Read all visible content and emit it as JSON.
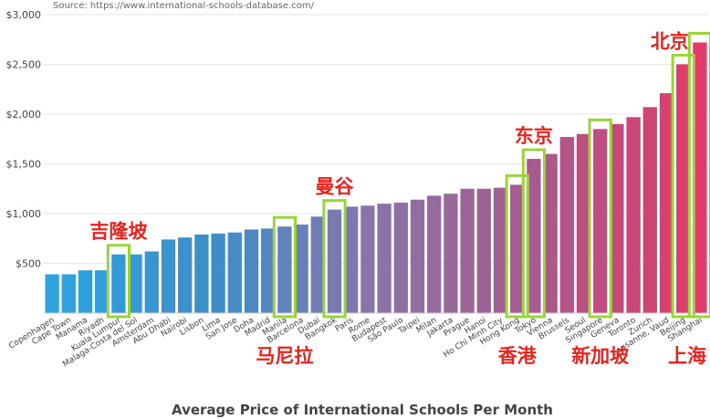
{
  "source": "Source: https://www.international-schools-database.com/",
  "chart_data": {
    "type": "bar",
    "title": "Average Price of International Schools Per Month",
    "xlabel": "",
    "ylabel": "",
    "ylim": [
      0,
      3000
    ],
    "yticks": [
      500,
      1000,
      1500,
      2000,
      2500,
      3000
    ],
    "ytick_labels": [
      "$500",
      "$1,000",
      "$1,500",
      "$2,000",
      "$2,500",
      "$3,000"
    ],
    "grid": true,
    "color_gradient": [
      "#2ea3e0",
      "#3d8ec8",
      "#8b74a8",
      "#a85a8c",
      "#e23a6a"
    ],
    "highlight_color": "#9ad43b",
    "annotation_color": "#e8231d",
    "categories": [
      "Copenhagen",
      "Cape Town",
      "Manama",
      "Riyadh",
      "Kuala Lumpur",
      "Malaga-Costa del Sol",
      "Amsterdam",
      "Abu Dhabi",
      "Nairobi",
      "Lisbon",
      "Lima",
      "San Jose",
      "Doha",
      "Madrid",
      "Manila",
      "Barcelona",
      "Dubai",
      "Bangkok",
      "Paris",
      "Rome",
      "Budapest",
      "São Paulo",
      "Taipei",
      "Milan",
      "Jakarta",
      "Prague",
      "Hanoi",
      "Ho Chi Minh City",
      "Hong Kong",
      "Tokyo",
      "Vienna",
      "Brussels",
      "Seoul",
      "Singapore",
      "Geneva",
      "Toronto",
      "Zurich",
      "Lausanne, Vaud",
      "Beijing",
      "Shanghai"
    ],
    "values": [
      390,
      390,
      430,
      430,
      590,
      590,
      620,
      740,
      760,
      790,
      800,
      810,
      840,
      850,
      870,
      890,
      970,
      1040,
      1070,
      1080,
      1100,
      1110,
      1140,
      1180,
      1200,
      1250,
      1250,
      1260,
      1290,
      1550,
      1600,
      1770,
      1800,
      1850,
      1900,
      1970,
      2070,
      2210,
      2500,
      2720
    ],
    "highlights": [
      {
        "category": "Kuala Lumpur",
        "annotation": "吉隆坡",
        "annotation_position": "above"
      },
      {
        "category": "Manila",
        "annotation": "马尼拉",
        "annotation_position": "below"
      },
      {
        "category": "Bangkok",
        "annotation": "曼谷",
        "annotation_position": "above"
      },
      {
        "category": "Hong Kong",
        "annotation": "香港",
        "annotation_position": "below"
      },
      {
        "category": "Tokyo",
        "annotation": "东京",
        "annotation_position": "above"
      },
      {
        "category": "Singapore",
        "annotation": "新加坡",
        "annotation_position": "below"
      },
      {
        "category": "Beijing",
        "annotation": "北京",
        "annotation_position": "above"
      },
      {
        "category": "Shanghai",
        "annotation": "上海",
        "annotation_position": "below"
      }
    ]
  }
}
